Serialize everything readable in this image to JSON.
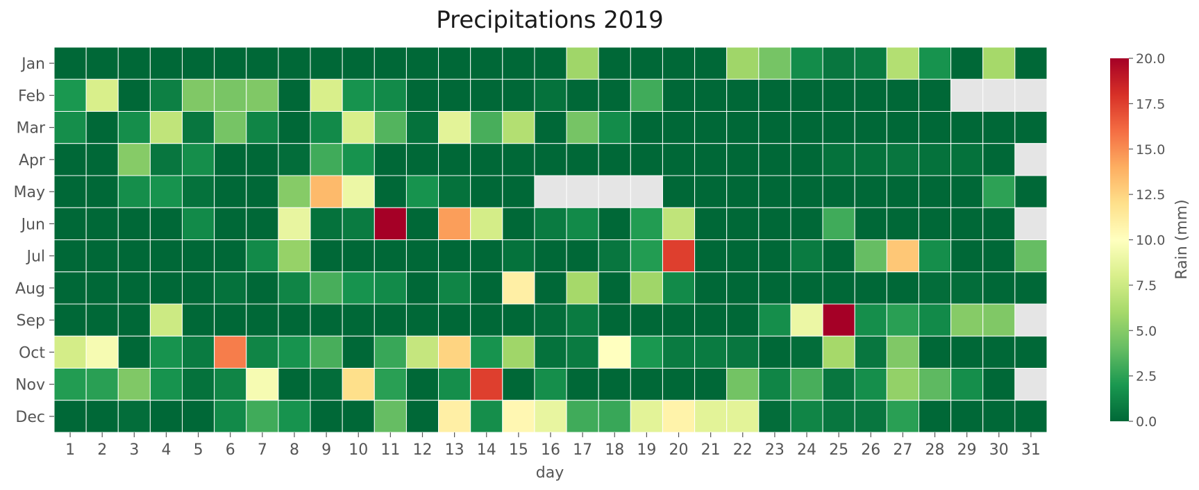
{
  "chart_data": {
    "type": "heatmap",
    "title": "Precipitations 2019",
    "xlabel": "day",
    "ylabel": "",
    "x": [
      "1",
      "2",
      "3",
      "4",
      "5",
      "6",
      "7",
      "8",
      "9",
      "10",
      "11",
      "12",
      "13",
      "14",
      "15",
      "16",
      "17",
      "18",
      "19",
      "20",
      "21",
      "22",
      "23",
      "24",
      "25",
      "26",
      "27",
      "28",
      "29",
      "30",
      "31"
    ],
    "y": [
      "Jan",
      "Feb",
      "Mar",
      "Apr",
      "May",
      "Jun",
      "Jul",
      "Aug",
      "Sep",
      "Oct",
      "Nov",
      "Dec"
    ],
    "values": [
      [
        0,
        0,
        0,
        0,
        0,
        0,
        0,
        0,
        0,
        0,
        0,
        0,
        0,
        0,
        0,
        0,
        5.8,
        0,
        0,
        0,
        0,
        5.8,
        4.5,
        1.5,
        0.6,
        0.8,
        6.5,
        1.8,
        0,
        6,
        0
      ],
      [
        2,
        8,
        0,
        1,
        4.8,
        4.6,
        4.8,
        0,
        8,
        1.8,
        1.4,
        0,
        0,
        0,
        0,
        0.4,
        0,
        0,
        3,
        0,
        0,
        0,
        0,
        0,
        0,
        0,
        0,
        0,
        null,
        null,
        null
      ],
      [
        1.6,
        0,
        1.6,
        7,
        0.6,
        4.5,
        1.2,
        0,
        1.4,
        8,
        3.5,
        0.4,
        8.5,
        3.2,
        6.5,
        0,
        4.5,
        1.5,
        0,
        0,
        0,
        0,
        0,
        0,
        0,
        0,
        0,
        0,
        0,
        0,
        0
      ],
      [
        0,
        0,
        5,
        0.6,
        1.6,
        0,
        0,
        0.2,
        3,
        1.8,
        0,
        0,
        0,
        0,
        0,
        0,
        0,
        0,
        0,
        0,
        0,
        0,
        0,
        0,
        0.4,
        0.4,
        0.6,
        0.4,
        0.4,
        0,
        null
      ],
      [
        0,
        0,
        1.6,
        1.8,
        0.4,
        0,
        0,
        5,
        13.5,
        9,
        0,
        1.8,
        0.4,
        0,
        0,
        null,
        null,
        null,
        null,
        0,
        0,
        0,
        0,
        0,
        0,
        0,
        0,
        0,
        0,
        2.5,
        0
      ],
      [
        0,
        0,
        0,
        0,
        1.4,
        0,
        0,
        8.8,
        0.4,
        0.8,
        20,
        0,
        14.5,
        7.8,
        0,
        0.8,
        1.4,
        0,
        2.2,
        7,
        0,
        0,
        0,
        0,
        3,
        0,
        0,
        0,
        0,
        0,
        null
      ],
      [
        0,
        0,
        0,
        0,
        0,
        0,
        1.4,
        5.5,
        0,
        0,
        0,
        0,
        0,
        0,
        0.4,
        0,
        0,
        0.6,
        2.2,
        17.5,
        0,
        0,
        0,
        0.8,
        0,
        4,
        13,
        1.6,
        0,
        0,
        4
      ],
      [
        0,
        0,
        0,
        0,
        0,
        0.4,
        0,
        1.2,
        3.2,
        1.8,
        1.4,
        0,
        1.2,
        0,
        11,
        0,
        6,
        0,
        5.8,
        1.4,
        0,
        0,
        0,
        0,
        0,
        0,
        0,
        0.2,
        0.2,
        0,
        0
      ],
      [
        0,
        0,
        0,
        7.5,
        0,
        0,
        0,
        0,
        0,
        0,
        0,
        0,
        0,
        0,
        0,
        0.2,
        0.8,
        0,
        0,
        0,
        0,
        0,
        1.6,
        9,
        20,
        1.6,
        2.4,
        1.4,
        5,
        4.8,
        null
      ],
      [
        7.8,
        9.5,
        0,
        1.8,
        0.8,
        15.5,
        1.2,
        1.8,
        3.2,
        0,
        2.8,
        7.2,
        12.5,
        1.8,
        5.8,
        0.4,
        0.8,
        10,
        2,
        0.8,
        0.8,
        0.6,
        0,
        0.2,
        6,
        0.6,
        4.8,
        0,
        0,
        0,
        0
      ],
      [
        2.2,
        2.4,
        4.8,
        1.8,
        0.4,
        1.2,
        9.5,
        0,
        0.2,
        12,
        2.4,
        0,
        1.6,
        17.5,
        0,
        1.6,
        0,
        0,
        0,
        0,
        0,
        4.4,
        1.2,
        3.2,
        0.6,
        1.6,
        5.4,
        3.8,
        1.6,
        0,
        null
      ],
      [
        0,
        0,
        0.2,
        0,
        0,
        1.4,
        3,
        1.8,
        0,
        0,
        4,
        0,
        11,
        1.6,
        10.5,
        8.8,
        3,
        2.8,
        8.5,
        10.8,
        8.5,
        8.5,
        0.2,
        1.2,
        0.6,
        0.6,
        2.4,
        0,
        0,
        0,
        0
      ]
    ],
    "colorbar": {
      "label": "Rain (mm)",
      "range": [
        0,
        20
      ],
      "ticks": [
        "0.0",
        "2.5",
        "5.0",
        "7.5",
        "10.0",
        "12.5",
        "15.0",
        "17.5",
        "20.0"
      ],
      "colormap": "RdYlGn_r",
      "missing_color": "#e5e5e5"
    },
    "grid": false,
    "cell_border_color": "#ffffff"
  }
}
